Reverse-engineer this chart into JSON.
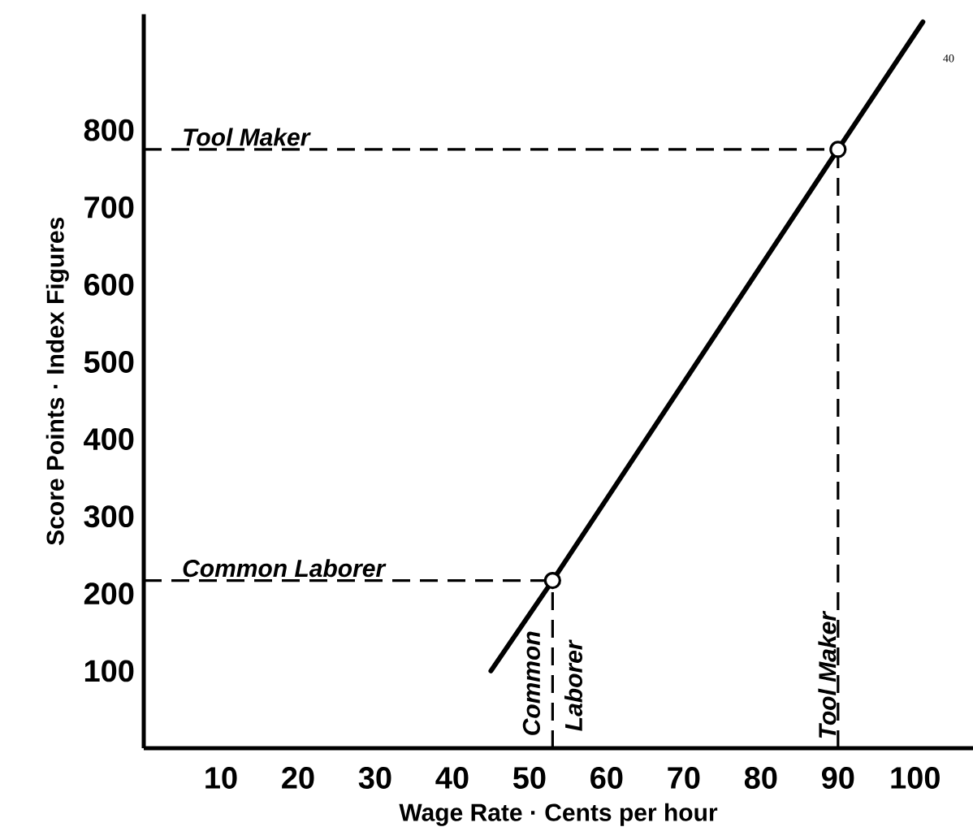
{
  "chart_data": {
    "type": "line",
    "xlabel": "Wage Rate · Cents per hour",
    "ylabel": "Score Points · Index Figures",
    "xlim": [
      0,
      107.5
    ],
    "ylim": [
      0,
      950
    ],
    "xticks": [
      10,
      20,
      30,
      40,
      50,
      60,
      70,
      80,
      90,
      100
    ],
    "yticks": [
      100,
      200,
      300,
      400,
      500,
      600,
      700,
      800
    ],
    "grid": false,
    "series": [
      {
        "color": "#000000",
        "x": [
          45,
          53,
          90,
          101
        ],
        "values": [
          100,
          217,
          775,
          940
        ],
        "marker": "none",
        "line_style": "solid"
      },
      {
        "type": "scatter",
        "color": "#000000",
        "x": [
          53,
          90
        ],
        "values": [
          217,
          775
        ],
        "marker": "circle"
      }
    ],
    "ref_lines": [
      {
        "axis": "y",
        "value": 775,
        "label": "Tool Maker",
        "line_style": "dashed"
      },
      {
        "axis": "y",
        "value": 217,
        "label": "Common Laborer",
        "line_style": "dashed"
      },
      {
        "axis": "x",
        "value": 53,
        "label": "Common Laborer",
        "line_style": "dashed"
      },
      {
        "axis": "x",
        "value": 90,
        "label": "Tool Maker",
        "line_style": "dashed"
      }
    ],
    "annotations": [
      "40"
    ]
  }
}
